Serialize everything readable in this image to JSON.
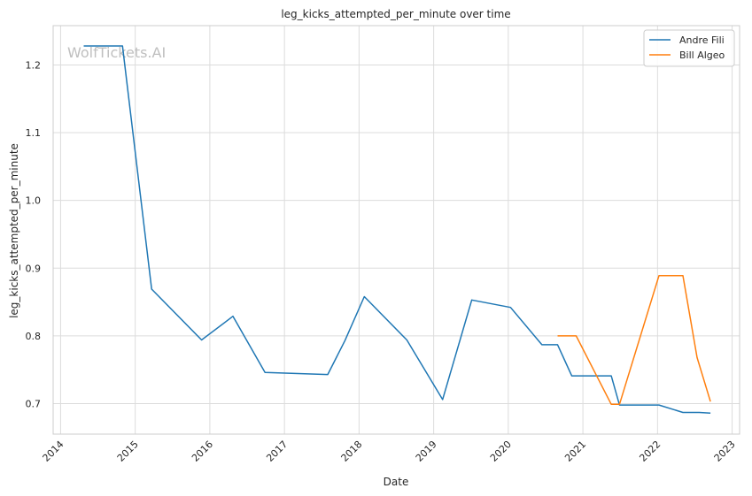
{
  "chart_data": {
    "type": "line",
    "title": "leg_kicks_attempted_per_minute over time",
    "xlabel": "Date",
    "ylabel": "leg_kicks_attempted_per_minute",
    "watermark": "WolfTickets.AI",
    "x_ticks": [
      "2014",
      "2015",
      "2016",
      "2017",
      "2018",
      "2019",
      "2020",
      "2021",
      "2022",
      "2023"
    ],
    "y_ticks": [
      "0.7",
      "0.8",
      "0.9",
      "1.0",
      "1.1",
      "1.2"
    ],
    "xlim": [
      2013.9,
      2023.1
    ],
    "ylim": [
      0.655,
      1.258
    ],
    "grid": true,
    "legend_position": "top-right",
    "series": [
      {
        "name": "Andre Fili",
        "color": "#1f77b4",
        "x": [
          2014.31,
          2014.83,
          2015.22,
          2015.89,
          2016.31,
          2016.74,
          2017.58,
          2017.81,
          2018.07,
          2018.64,
          2019.12,
          2019.51,
          2020.03,
          2020.45,
          2020.66,
          2020.85,
          2021.38,
          2021.49,
          2022.02,
          2022.34,
          2022.56,
          2022.71
        ],
        "y": [
          1.228,
          1.228,
          0.869,
          0.794,
          0.829,
          0.746,
          0.743,
          0.793,
          0.858,
          0.794,
          0.706,
          0.853,
          0.842,
          0.787,
          0.787,
          0.741,
          0.741,
          0.698,
          0.698,
          0.687,
          0.687,
          0.686
        ]
      },
      {
        "name": "Bill Algeo",
        "color": "#ff7f0e",
        "x": [
          2020.66,
          2020.91,
          2021.38,
          2021.49,
          2022.02,
          2022.34,
          2022.53,
          2022.71
        ],
        "y": [
          0.8,
          0.8,
          0.699,
          0.699,
          0.889,
          0.889,
          0.768,
          0.703
        ]
      }
    ]
  }
}
